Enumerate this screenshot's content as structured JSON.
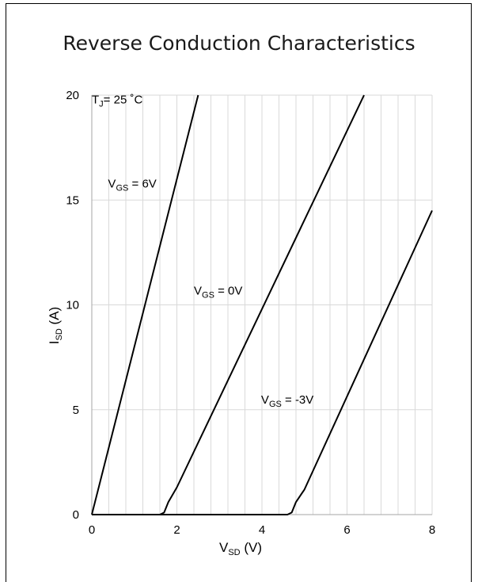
{
  "chart_data": {
    "type": "line",
    "title": "Reverse Conduction Characteristics",
    "xlabel": {
      "main": "V",
      "sub": "SD",
      "unit": " (V)"
    },
    "ylabel": {
      "main": "I",
      "sub": "SD",
      "unit": " (A)"
    },
    "xlim": [
      0,
      8
    ],
    "ylim": [
      0,
      20
    ],
    "xticks": [
      0,
      2,
      4,
      6,
      8
    ],
    "yticks": [
      0,
      5,
      10,
      15,
      20
    ],
    "grid": {
      "x_major": true,
      "x_minor_step": 0.4,
      "y_major": true
    },
    "series": [
      {
        "name": "VGS = 6V",
        "x": [
          0.0,
          2.5
        ],
        "y": [
          0.0,
          20.0
        ]
      },
      {
        "name": "VGS = 0V",
        "x": [
          0.0,
          1.6,
          1.7,
          1.8,
          2.0,
          6.4
        ],
        "y": [
          0.0,
          0.0,
          0.1,
          0.6,
          1.3,
          20.0
        ]
      },
      {
        "name": "VGS = -3V",
        "x": [
          0.0,
          4.6,
          4.7,
          4.8,
          5.0,
          8.0
        ],
        "y": [
          0.0,
          0.0,
          0.1,
          0.6,
          1.2,
          14.5
        ]
      }
    ],
    "annotations": [
      {
        "id": "tj",
        "main": "T",
        "sub": "J",
        "rest": "= 25 ˚C",
        "x": 0.0,
        "y": 19.6
      },
      {
        "id": "vgs6",
        "main": "V",
        "sub": "GS",
        "rest": " = 6V",
        "x": 0.38,
        "y": 15.6
      },
      {
        "id": "vgs0",
        "main": "V",
        "sub": "GS",
        "rest": " = 0V",
        "x": 2.4,
        "y": 10.5
      },
      {
        "id": "vgsm3",
        "main": "V",
        "sub": "GS",
        "rest": " = -3V",
        "x": 3.98,
        "y": 5.3
      }
    ],
    "colors": {
      "line": "#000000",
      "grid": "#d9d9d9",
      "axis": "#a6a6a6"
    }
  }
}
